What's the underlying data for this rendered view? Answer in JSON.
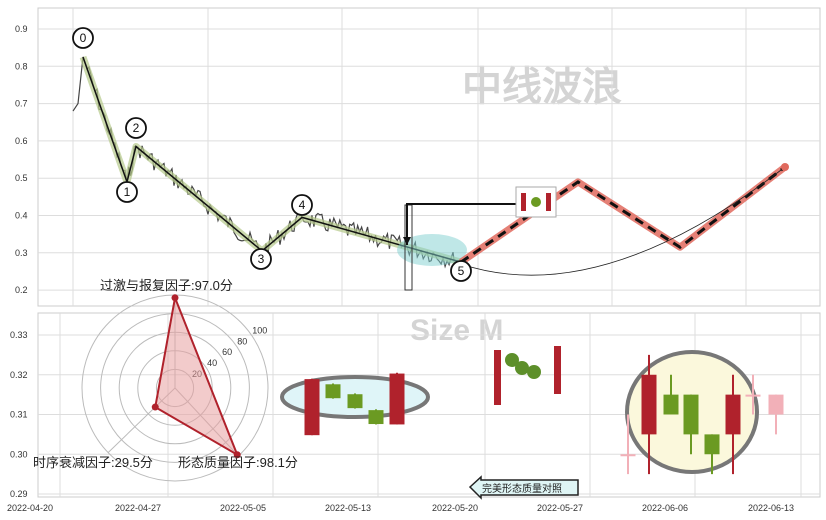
{
  "chart_data": [
    {
      "type": "line",
      "panel": "top",
      "y_ticks": [
        "0.9",
        "0.8",
        "0.7",
        "0.6",
        "0.5",
        "0.4",
        "0.3",
        "0.2"
      ],
      "ylim": [
        0.18,
        0.95
      ],
      "grid": true,
      "wave_points": [
        {
          "label": "0",
          "value": 0.825
        },
        {
          "label": "1",
          "value": 0.49
        },
        {
          "label": "2",
          "value": 0.585
        },
        {
          "label": "3",
          "value": 0.305
        },
        {
          "label": "4",
          "value": 0.395
        },
        {
          "label": "5",
          "value": 0.275
        }
      ],
      "projection_values": [
        0.275,
        0.49,
        0.315,
        0.53
      ],
      "colors": {
        "price": "#444444",
        "wave_highlight": "#b5c98a",
        "projection": "#e06a5e",
        "projection_dash": "#111111",
        "ellipse": "#7fcfcf"
      }
    },
    {
      "type": "candlestick",
      "panel": "bottom",
      "y_ticks": [
        "0.33",
        "0.32",
        "0.31",
        "0.30",
        "0.29"
      ],
      "ylim": [
        0.2895,
        0.336
      ],
      "x_ticks": [
        "2022-04-20",
        "2022-04-27",
        "2022-05-05",
        "2022-05-13",
        "2022-05-20",
        "2022-05-27",
        "2022-06-06",
        "2022-06-13"
      ],
      "grid": true,
      "left_group": [
        {
          "o": 0.3048,
          "h": 0.319,
          "l": 0.3048,
          "c": 0.3189,
          "color": "red"
        },
        {
          "o": 0.3176,
          "h": 0.3178,
          "l": 0.314,
          "c": 0.3141,
          "color": "green"
        },
        {
          "o": 0.3151,
          "h": 0.3153,
          "l": 0.3115,
          "c": 0.3116,
          "color": "green"
        },
        {
          "o": 0.3111,
          "h": 0.3113,
          "l": 0.3075,
          "c": 0.3076,
          "color": "green"
        },
        {
          "o": 0.3075,
          "h": 0.3205,
          "l": 0.3075,
          "c": 0.3203,
          "color": "red"
        }
      ],
      "right_group": [
        {
          "o": 0.3,
          "h": 0.31,
          "l": 0.295,
          "c": 0.3,
          "color": "pink"
        },
        {
          "o": 0.305,
          "h": 0.325,
          "l": 0.295,
          "c": 0.32,
          "color": "red"
        },
        {
          "o": 0.315,
          "h": 0.32,
          "l": 0.31,
          "c": 0.31,
          "color": "green"
        },
        {
          "o": 0.315,
          "h": 0.315,
          "l": 0.3,
          "c": 0.305,
          "color": "green"
        },
        {
          "o": 0.305,
          "h": 0.305,
          "l": 0.295,
          "c": 0.3,
          "color": "green"
        },
        {
          "o": 0.305,
          "h": 0.32,
          "l": 0.295,
          "c": 0.315,
          "color": "red"
        },
        {
          "o": 0.315,
          "h": 0.32,
          "l": 0.31,
          "c": 0.315,
          "color": "pink"
        },
        {
          "o": 0.31,
          "h": 0.315,
          "l": 0.305,
          "c": 0.315,
          "color": "pink"
        }
      ],
      "colors": {
        "red": "#b0222c",
        "green": "#6b9a22",
        "pink": "#f2b0b8",
        "ellipse": "#777777"
      }
    },
    {
      "type": "radar",
      "ring_labels": [
        "20",
        "40",
        "60",
        "80",
        "100"
      ],
      "rmax": 100,
      "factors": [
        {
          "name": "过激与报复因子",
          "value": 97.0,
          "label": "过激与报复因子:97.0分"
        },
        {
          "name": "时序衰减因子",
          "value": 29.5,
          "label": "时序衰减因子:29.5分"
        },
        {
          "name": "形态质量因子",
          "value": 98.1,
          "label": "形态质量因子:98.1分"
        }
      ],
      "colors": {
        "line": "#b0222c",
        "fill": "#e8a0a0"
      }
    }
  ],
  "annotations": {
    "compare_button": "完美形态质量对照",
    "watermark_title": "中线波浪",
    "watermark_size": "Size M"
  }
}
